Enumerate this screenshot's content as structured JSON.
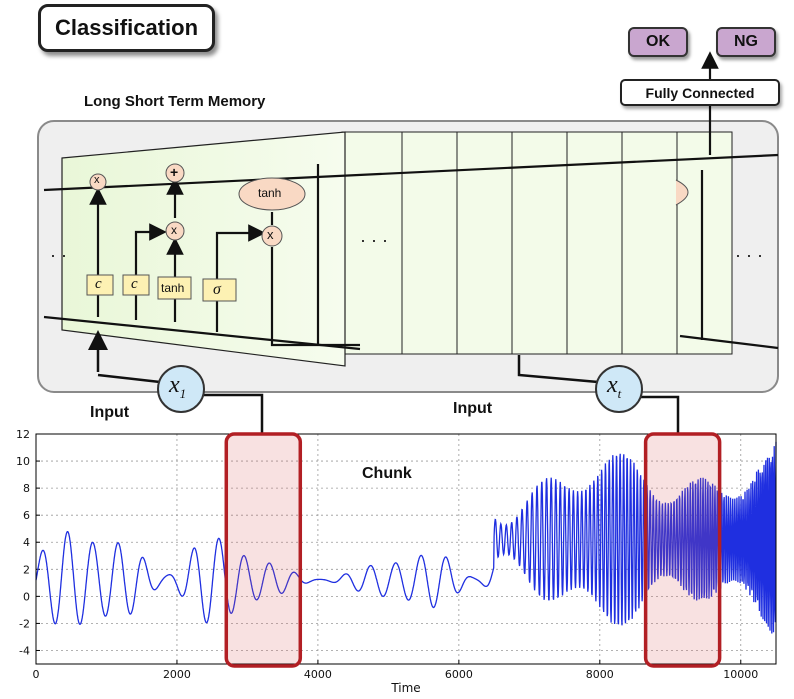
{
  "title": "Classification",
  "outputs": {
    "ok_label": "OK",
    "ng_label": "NG"
  },
  "fully_connected_label": "Fully Connected",
  "lstm_label": "Long Short Term Memory",
  "input_labels": [
    "Input",
    "Input"
  ],
  "chunk_label": "Chunk",
  "cell": {
    "gate_labels": [
      "c",
      "c",
      "tanh",
      "σ"
    ],
    "tanh_label": "tanh",
    "multiply_symbol": "x",
    "add_symbol": "+",
    "ellipsis": "· · ·",
    "left_dots": "· ·"
  },
  "inputs": {
    "x1": "x",
    "x1_sub": "1",
    "xt": "x",
    "xt_sub": "t"
  },
  "colors": {
    "highlight": "#b21f24",
    "signal": "#1f2fe0",
    "cell_fill": "#eef9de",
    "gate_fill": "#fdf1b3",
    "tanh_fill": "#f9d9c4",
    "input_fill": "#cfe8f7"
  },
  "chart_data": {
    "type": "line",
    "xlabel": "Time",
    "ylabel": "",
    "xlim": [
      0,
      10500
    ],
    "ylim": [
      -5,
      12
    ],
    "x_ticks": [
      "0",
      "2000",
      "4000",
      "6000",
      "8000",
      "10000"
    ],
    "y_ticks": [
      "-4",
      "-2",
      "0",
      "2",
      "4",
      "6",
      "8",
      "10",
      "12"
    ],
    "grid": true,
    "highlight_ranges": [
      [
        2700,
        3750
      ],
      [
        8650,
        9700
      ]
    ]
  }
}
